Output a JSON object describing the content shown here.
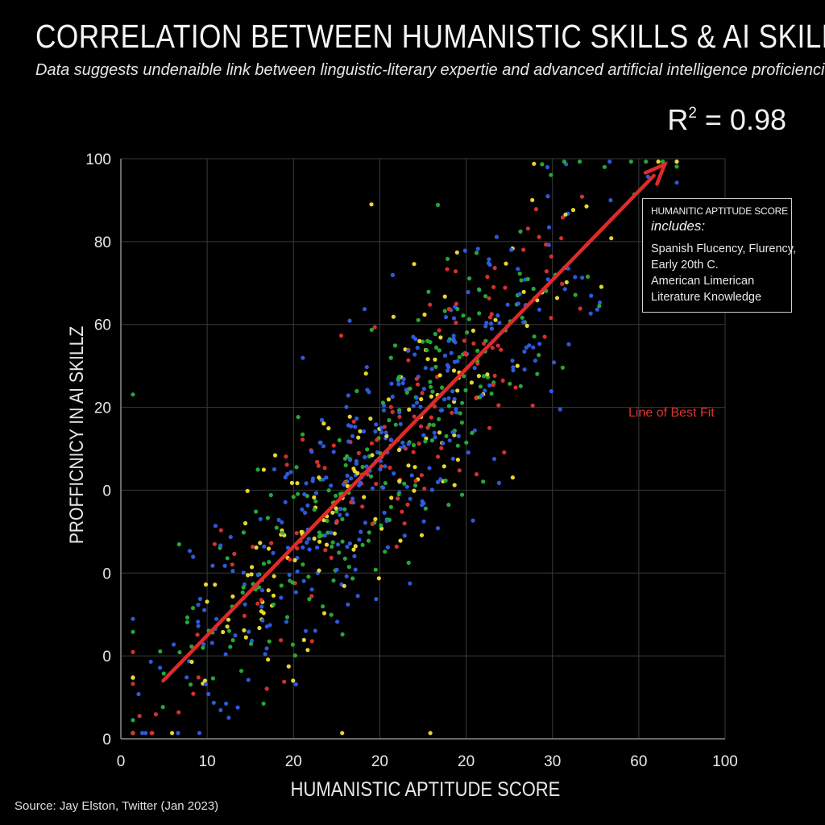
{
  "title": "CORRELATION BETWEEN HUMANISTIC SKILLS & AI SKILLZ",
  "subtitle": "Data suggests undenaible link between linguistic-literary expertie and advanced artificial intelligence proficiencies.",
  "r_squared": {
    "label": "R",
    "sup": "2",
    "value": "= 0.98"
  },
  "legend": {
    "title": "HUMANITIC APTITUDE SCORE",
    "includes": "includes:",
    "items": [
      "Spanish Flucency, Flurency,",
      "Early 20th C.",
      "American Limerican",
      "Literature Knowledge"
    ]
  },
  "fit_label": "Line of Best Fit",
  "source": "Source: Jay Elston, Twitter (Jan 2023)",
  "colors": {
    "red": "#e03131",
    "blue": "#2f5ee6",
    "green": "#27b03a",
    "yellow": "#f2e230",
    "arrow": "#e02a2a",
    "grid": "#3a3a3a"
  },
  "chart_data": {
    "type": "scatter",
    "title": "CORRELATION BETWEEN HUMANISTIC SKILLS & AI SKILLZ",
    "xlabel": "HUMANISTIC APTITUDE SCORE",
    "ylabel": "PROFFICNICY IN AI SKILLZ",
    "xlim": [
      0,
      100
    ],
    "ylim": [
      0,
      100
    ],
    "x_tick_labels": [
      "0",
      "10",
      "20",
      "20",
      "20",
      "30",
      "60",
      "100"
    ],
    "y_tick_labels": [
      "0",
      "0",
      "0",
      "0",
      "20",
      "60",
      "80",
      "100"
    ],
    "grid": true,
    "trendline": {
      "from": [
        7,
        10
      ],
      "to": [
        90,
        99
      ],
      "label": "Line of Best Fit"
    },
    "series": [
      {
        "name": "red",
        "color": "#e03131",
        "count": 140
      },
      {
        "name": "blue",
        "color": "#2f5ee6",
        "count": 320
      },
      {
        "name": "green",
        "color": "#27b03a",
        "count": 230
      },
      {
        "name": "yellow",
        "color": "#f2e230",
        "count": 160
      }
    ],
    "trend_slope_approx": 1.07,
    "spread_approx": 8
  }
}
